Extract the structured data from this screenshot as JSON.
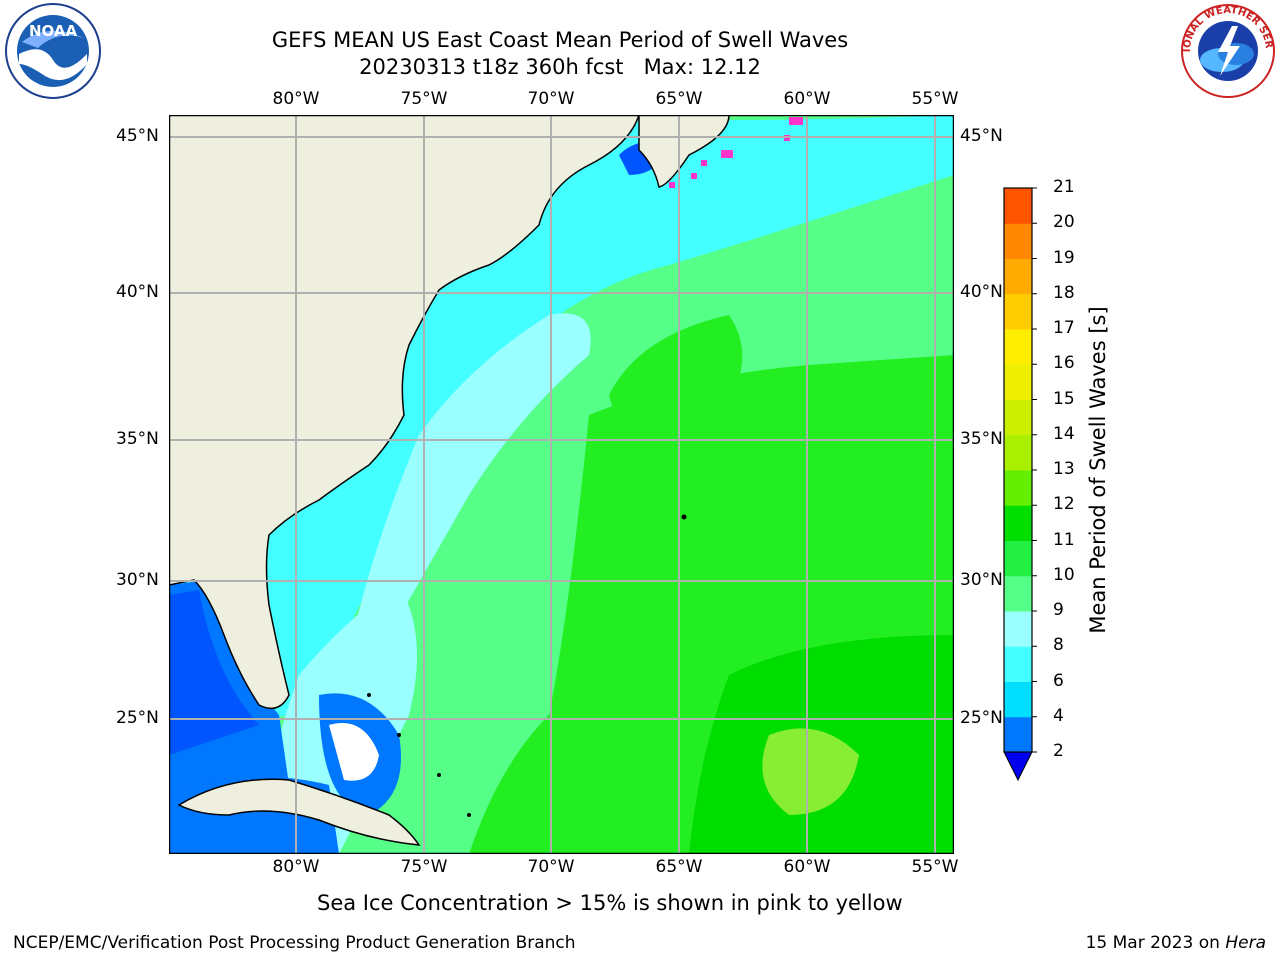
{
  "header": {
    "title_line1": "GEFS MEAN US East Coast Mean Period of Swell Waves",
    "title_line2": "20230313 t18z 360h fcst   Max: 12.12"
  },
  "logos": {
    "noaa_text": "NOAA",
    "nws_text": "NATIONAL WEATHER SERVICE"
  },
  "map": {
    "lon_labels": [
      "80°W",
      "75°W",
      "70°W",
      "65°W",
      "60°W",
      "55°W"
    ],
    "lat_labels": [
      "45°N",
      "40°N",
      "35°N",
      "30°N",
      "25°N"
    ],
    "ocean_palette": {
      "deep_blue": "#0055ff",
      "blue": "#0077ff",
      "cyan": "#00ffff",
      "aqua": "#66ffff",
      "light_cyan": "#99ffff",
      "light_green": "#55ff88",
      "green": "#22ee22",
      "bright_green": "#00dd00",
      "lime": "#88ee33",
      "land": "#efefdf",
      "ice_pink": "#ff33cc"
    },
    "ice_note": "Sea Ice Concentration > 15% is shown in pink to yellow"
  },
  "colorbar": {
    "title": "Mean Period of Swell Waves [s]",
    "ticks": [
      "2",
      "4",
      "6",
      "8",
      "9",
      "10",
      "11",
      "12",
      "13",
      "14",
      "15",
      "16",
      "17",
      "18",
      "19",
      "20",
      "21"
    ],
    "colors": [
      "#0077ff",
      "#00ddff",
      "#44ffff",
      "#99ffff",
      "#55ff88",
      "#22ee44",
      "#00dd00",
      "#66ee00",
      "#aaee00",
      "#ccee00",
      "#eeee00",
      "#ffee00",
      "#ffcc00",
      "#ffaa00",
      "#ff8800",
      "#ff5500",
      "#ff2200",
      "#ff0000"
    ],
    "extend_color": "#0000ee"
  },
  "footer": {
    "left": "NCEP/EMC/Verification Post Processing Product Generation Branch",
    "right_date": "15 Mar 2023 on ",
    "right_host": "Hera"
  }
}
